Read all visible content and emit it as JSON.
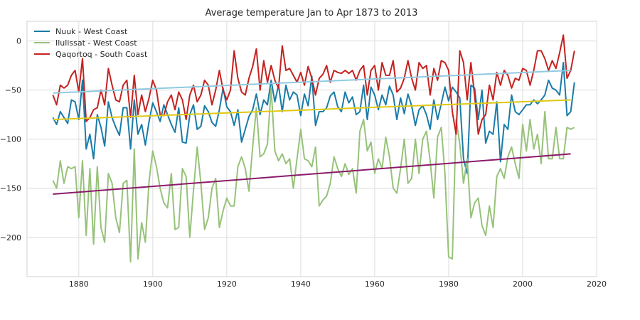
{
  "chart_data": {
    "type": "line",
    "title": "Average temperature Jan to Apr 1873 to 2013",
    "xlabel": "",
    "ylabel": "",
    "xlim": [
      1866,
      2020
    ],
    "ylim": [
      -240,
      20
    ],
    "x_ticks": [
      1880,
      1900,
      1920,
      1940,
      1960,
      1980,
      2000,
      2020
    ],
    "y_ticks": [
      0,
      -50,
      -100,
      -150,
      -200
    ],
    "grid": true,
    "legend": "top-left",
    "series": [
      {
        "name": "Nuuk - West Coast",
        "color": "#1a7ba8",
        "x_start": 1873,
        "values": [
          -78,
          -85,
          -72,
          -78,
          -84,
          -60,
          -62,
          -80,
          -40,
          -110,
          -95,
          -120,
          -75,
          -88,
          -107,
          -62,
          -78,
          -88,
          -96,
          -68,
          -68,
          -110,
          -60,
          -95,
          -85,
          -106,
          -82,
          -63,
          -72,
          -82,
          -65,
          -75,
          -85,
          -93,
          -68,
          -103,
          -104,
          -75,
          -65,
          -90,
          -87,
          -66,
          -72,
          -83,
          -87,
          -70,
          -48,
          -67,
          -72,
          -86,
          -70,
          -103,
          -90,
          -77,
          -70,
          -54,
          -75,
          -60,
          -65,
          -40,
          -62,
          -45,
          -72,
          -45,
          -60,
          -52,
          -55,
          -76,
          -54,
          -66,
          -36,
          -86,
          -72,
          -72,
          -68,
          -56,
          -52,
          -67,
          -72,
          -52,
          -63,
          -57,
          -75,
          -72,
          -45,
          -80,
          -47,
          -55,
          -70,
          -55,
          -65,
          -46,
          -55,
          -80,
          -58,
          -74,
          -54,
          -66,
          -86,
          -70,
          -66,
          -75,
          -90,
          -60,
          -80,
          -64,
          -47,
          -61,
          -47,
          -52,
          -58,
          -120,
          -135,
          -45,
          -48,
          -80,
          -50,
          -104,
          -92,
          -95,
          -62,
          -123,
          -85,
          -90,
          -55,
          -72,
          -75,
          -70,
          -65,
          -65,
          -60,
          -64,
          -60,
          -55,
          -40,
          -48,
          -50,
          -55,
          -22,
          -76,
          -72,
          -42
        ],
        "trend": [
          -80,
          -60
        ]
      },
      {
        "name": "Ilulissat - West Coast",
        "color": "#97c27a",
        "x_start": 1873,
        "values": [
          -142,
          -150,
          -122,
          -145,
          -128,
          -130,
          -128,
          -180,
          -122,
          -198,
          -130,
          -207,
          -128,
          -190,
          -205,
          -135,
          -145,
          -180,
          -195,
          -145,
          -142,
          -225,
          -110,
          -222,
          -185,
          -205,
          -143,
          -112,
          -128,
          -150,
          -165,
          -170,
          -135,
          -192,
          -190,
          -130,
          -138,
          -200,
          -152,
          -108,
          -145,
          -192,
          -180,
          -150,
          -140,
          -190,
          -173,
          -160,
          -168,
          -168,
          -128,
          -118,
          -130,
          -153,
          -108,
          -68,
          -118,
          -115,
          -105,
          -48,
          -112,
          -122,
          -115,
          -125,
          -120,
          -150,
          -120,
          -90,
          -120,
          -122,
          -128,
          -108,
          -168,
          -162,
          -158,
          -145,
          -118,
          -130,
          -138,
          -125,
          -136,
          -130,
          -155,
          -92,
          -80,
          -112,
          -103,
          -135,
          -120,
          -130,
          -98,
          -118,
          -150,
          -155,
          -130,
          -100,
          -145,
          -140,
          -100,
          -135,
          -100,
          -92,
          -122,
          -160,
          -98,
          -88,
          -135,
          -220,
          -222,
          -80,
          -105,
          -145,
          -120,
          -180,
          -165,
          -160,
          -188,
          -198,
          -168,
          -190,
          -138,
          -130,
          -140,
          -118,
          -108,
          -125,
          -140,
          -85,
          -112,
          -80,
          -110,
          -95,
          -125,
          -72,
          -120,
          -120,
          -88,
          -120,
          -120,
          -88,
          -90,
          -88
        ],
        "trend": [
          -156,
          -115
        ]
      },
      {
        "name": "Qaqortoq - South Coast",
        "color": "#c4221f",
        "x_start": 1873,
        "values": [
          -55,
          -65,
          -45,
          -48,
          -45,
          -35,
          -30,
          -52,
          -18,
          -82,
          -78,
          -70,
          -68,
          -50,
          -65,
          -28,
          -45,
          -60,
          -62,
          -45,
          -40,
          -78,
          -35,
          -75,
          -55,
          -72,
          -58,
          -40,
          -50,
          -75,
          -76,
          -62,
          -55,
          -70,
          -52,
          -60,
          -80,
          -55,
          -45,
          -62,
          -55,
          -40,
          -45,
          -65,
          -50,
          -30,
          -50,
          -60,
          -50,
          -10,
          -38,
          -52,
          -55,
          -38,
          -26,
          -8,
          -50,
          -20,
          -42,
          -25,
          -40,
          -48,
          -5,
          -30,
          -28,
          -35,
          -42,
          -32,
          -45,
          -26,
          -38,
          -55,
          -38,
          -34,
          -25,
          -42,
          -30,
          -32,
          -33,
          -30,
          -33,
          -30,
          -40,
          -30,
          -25,
          -55,
          -30,
          -25,
          -50,
          -22,
          -35,
          -35,
          -20,
          -52,
          -48,
          -38,
          -20,
          -38,
          -50,
          -22,
          -28,
          -25,
          -55,
          -28,
          -40,
          -20,
          -22,
          -30,
          -72,
          -95,
          -10,
          -22,
          -60,
          -22,
          -55,
          -95,
          -80,
          -75,
          -45,
          -60,
          -32,
          -45,
          -30,
          -35,
          -48,
          -38,
          -40,
          -28,
          -30,
          -45,
          -30,
          -10,
          -10,
          -18,
          -30,
          -20,
          -28,
          -12,
          6,
          -38,
          -30,
          -10
        ],
        "trend": null
      },
      {
        "name": "",
        "color": "#8fcae0",
        "x_start": 1873,
        "values": [],
        "trend": [
          -53,
          -30
        ]
      }
    ]
  }
}
